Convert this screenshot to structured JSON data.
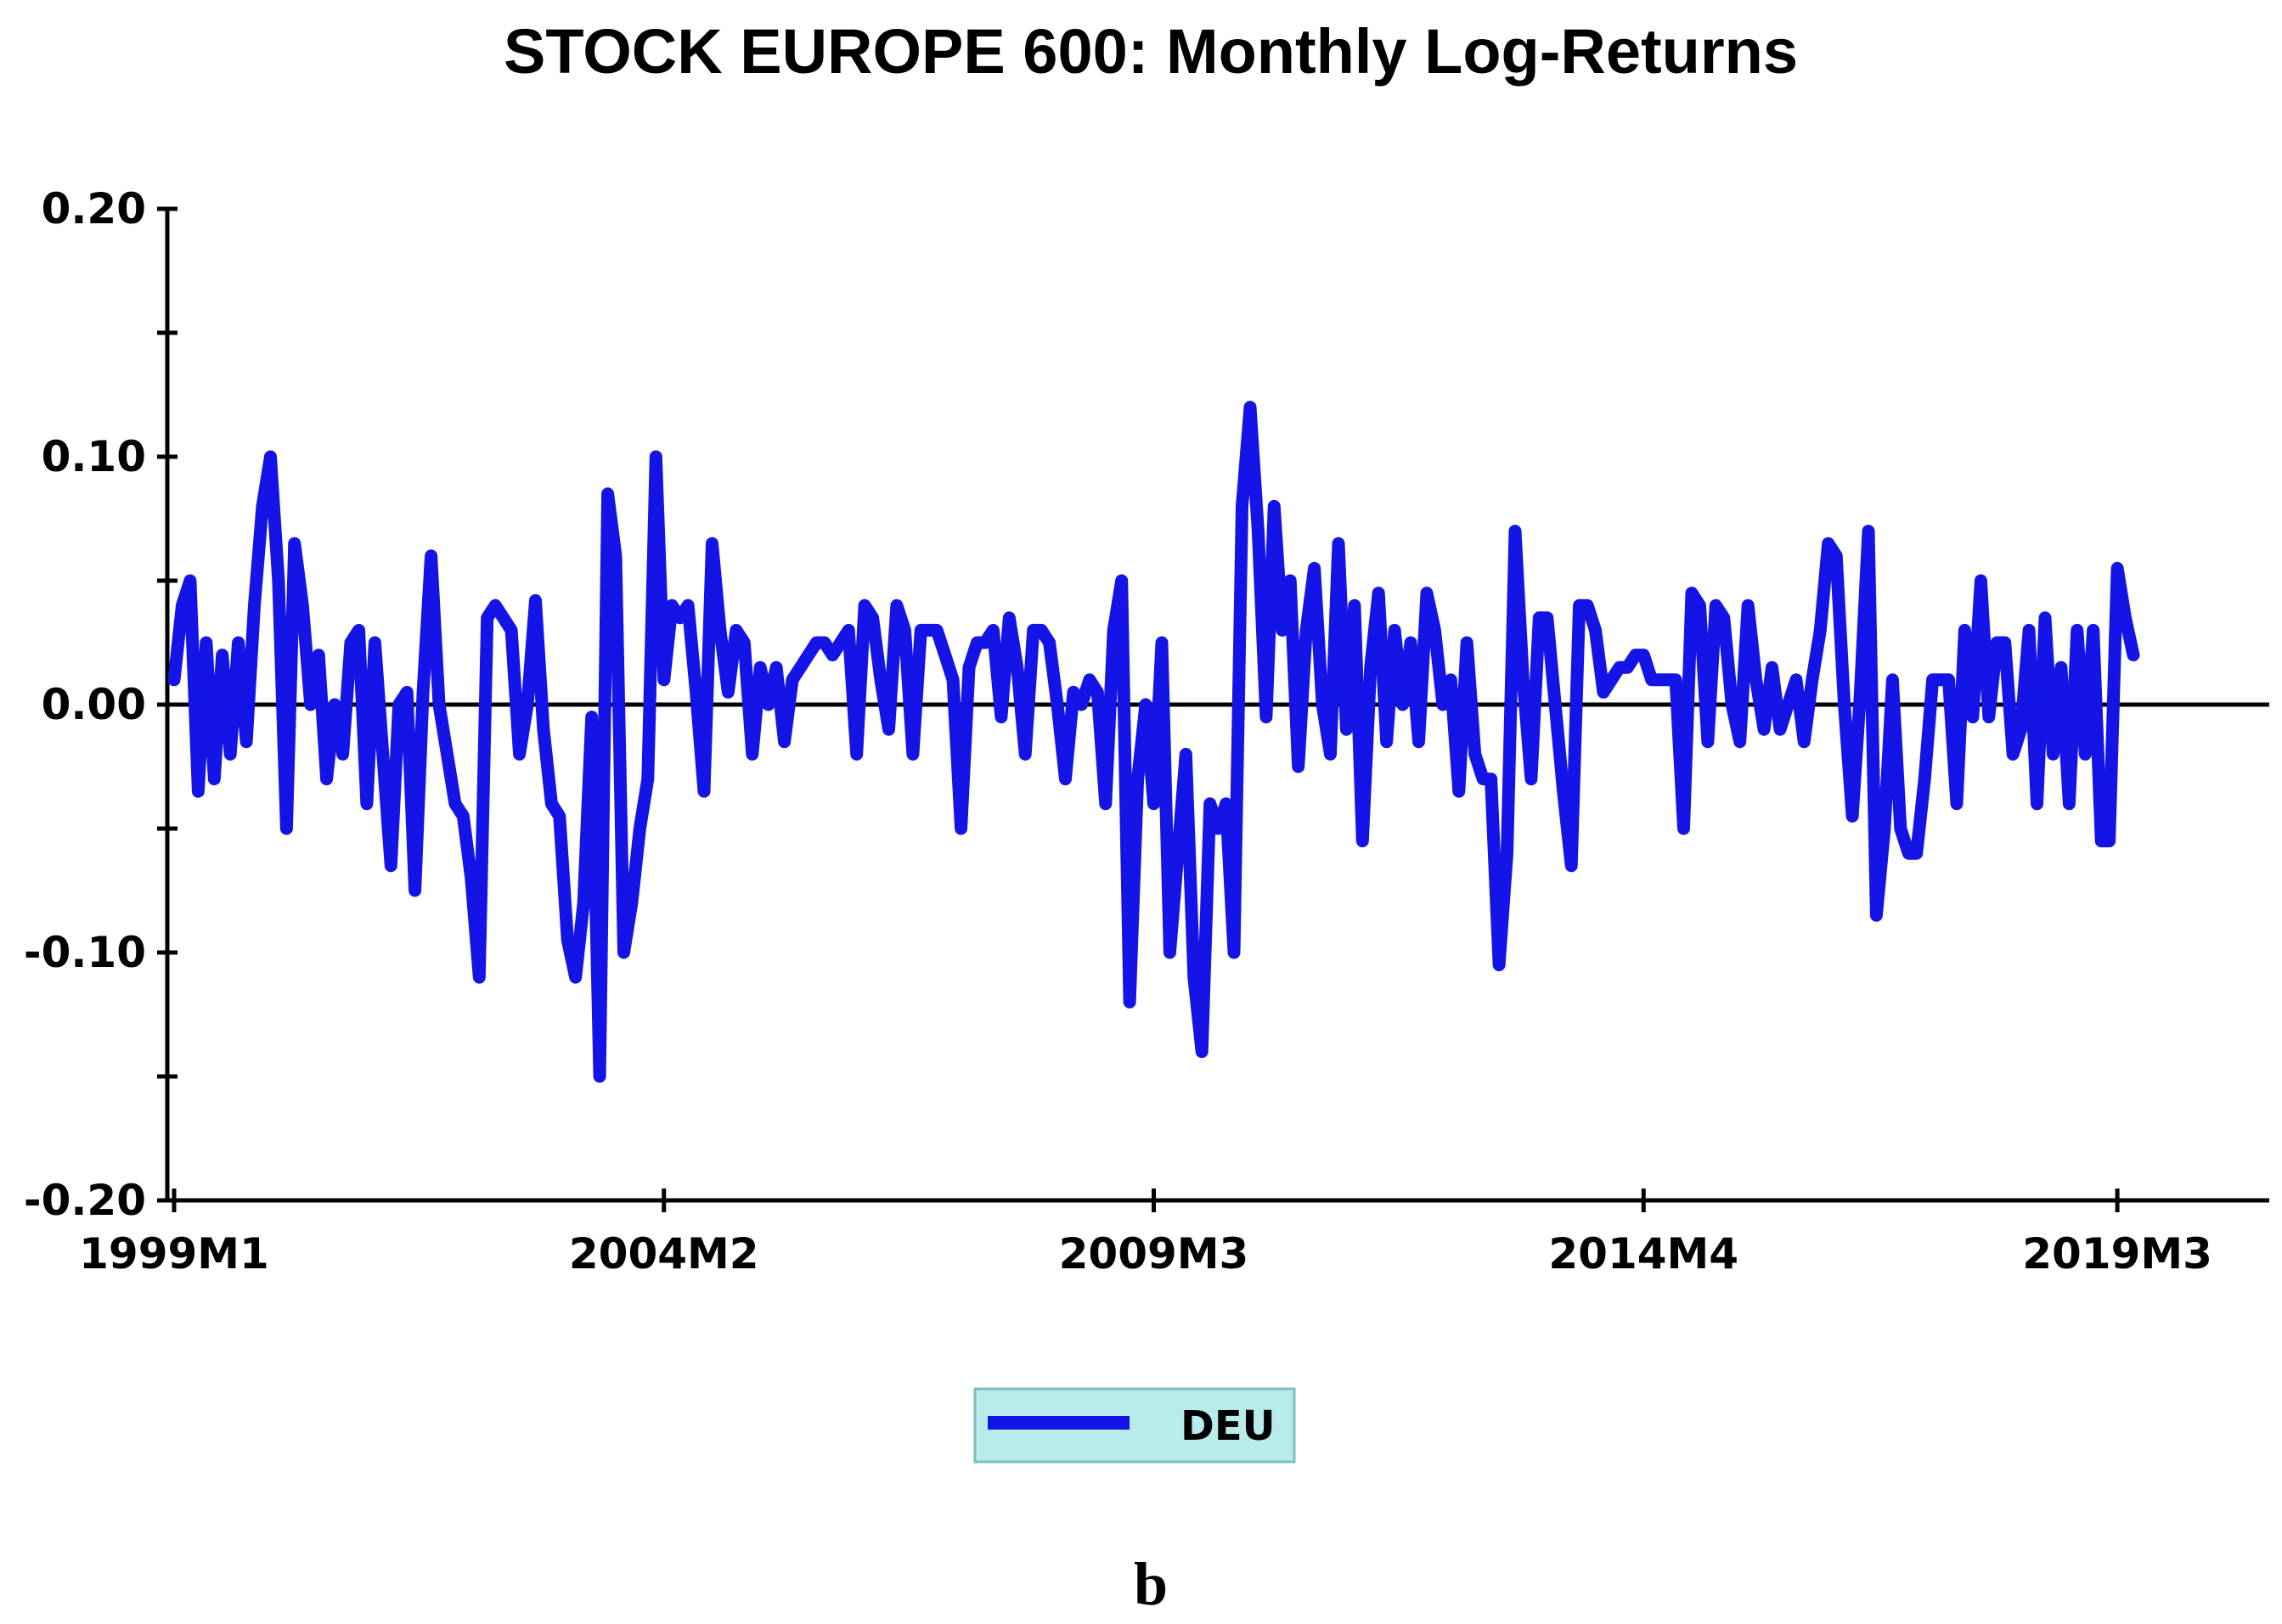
{
  "panel_label": "b",
  "chart_data": {
    "type": "line",
    "title": "STOCK EUROPE 600: Monthly Log-Returns",
    "xlabel": "",
    "ylabel": "",
    "ylim": [
      -0.2,
      0.2
    ],
    "y_ticks": [
      "0.20",
      "0.10",
      "0.00",
      "-0.10",
      "-0.20"
    ],
    "x_tick_labels": [
      "1999M1",
      "2004M2",
      "2009M3",
      "2014M4",
      "2019M3"
    ],
    "x_ticks_at_index": [
      0,
      61,
      122,
      183,
      242
    ],
    "zero_line": true,
    "grid": false,
    "legend": {
      "placement": "bottom-center",
      "background": "#b8ecec"
    },
    "colors": {
      "series": "#1414e6",
      "axis": "#000000"
    },
    "series": [
      {
        "name": "DEU",
        "start": "1999M1",
        "values": [
          0.01,
          0.04,
          0.05,
          -0.035,
          0.025,
          -0.03,
          0.02,
          -0.02,
          0.025,
          -0.015,
          0.04,
          0.08,
          0.1,
          0.05,
          -0.05,
          0.065,
          0.04,
          0.0,
          0.02,
          -0.03,
          0.0,
          -0.02,
          0.025,
          0.03,
          -0.04,
          0.025,
          -0.02,
          -0.065,
          0.0,
          0.005,
          -0.075,
          0.005,
          0.06,
          0.0,
          -0.02,
          -0.04,
          -0.045,
          -0.07,
          -0.11,
          0.035,
          0.04,
          0.035,
          0.03,
          -0.02,
          0.0,
          0.042,
          -0.01,
          -0.04,
          -0.045,
          -0.095,
          -0.11,
          -0.08,
          -0.005,
          -0.15,
          0.085,
          0.06,
          -0.1,
          -0.08,
          -0.05,
          -0.03,
          0.1,
          0.01,
          0.04,
          0.035,
          0.04,
          0.005,
          -0.035,
          0.065,
          0.03,
          0.005,
          0.03,
          0.025,
          -0.02,
          0.015,
          0.0,
          0.015,
          -0.015,
          0.01,
          0.015,
          0.02,
          0.025,
          0.025,
          0.02,
          0.025,
          0.03,
          -0.02,
          0.04,
          0.035,
          0.01,
          -0.01,
          0.04,
          0.03,
          -0.02,
          0.03,
          0.03,
          0.03,
          0.02,
          0.01,
          -0.05,
          0.015,
          0.025,
          0.025,
          0.03,
          -0.005,
          0.035,
          0.015,
          -0.02,
          0.03,
          0.03,
          0.025,
          0.0,
          -0.03,
          0.005,
          0.0,
          0.01,
          0.005,
          -0.04,
          0.03,
          0.05,
          -0.12,
          -0.03,
          0.0,
          -0.04,
          0.025,
          -0.1,
          -0.06,
          -0.02,
          -0.11,
          -0.14,
          -0.04,
          -0.05,
          -0.04,
          -0.1,
          0.08,
          0.12,
          0.07,
          -0.005,
          0.08,
          0.03,
          0.05,
          -0.025,
          0.03,
          0.055,
          0.0,
          -0.02,
          0.065,
          -0.01,
          0.04,
          -0.055,
          0.015,
          0.045,
          -0.015,
          0.03,
          0.0,
          0.025,
          -0.015,
          0.045,
          0.03,
          0.0,
          0.01,
          -0.035,
          0.025,
          -0.02,
          -0.03,
          -0.03,
          -0.105,
          -0.06,
          0.07,
          0.01,
          -0.03,
          0.035,
          0.035,
          0.0,
          -0.035,
          -0.065,
          0.04,
          0.04,
          0.03,
          0.005,
          0.01,
          0.015,
          0.015,
          0.02,
          0.02,
          0.01,
          0.01,
          0.01,
          0.01,
          -0.05,
          0.045,
          0.04,
          -0.015,
          0.04,
          0.035,
          0.0,
          -0.015,
          0.04,
          0.01,
          -0.01,
          0.015,
          -0.01,
          0.0,
          0.01,
          -0.015,
          0.01,
          0.03,
          0.065,
          0.06,
          0.0,
          -0.045,
          0.005,
          0.07,
          -0.085,
          -0.05,
          0.01,
          -0.05,
          -0.06,
          -0.06,
          -0.03,
          0.01,
          0.01,
          0.01,
          -0.04,
          0.03,
          -0.005,
          0.05,
          -0.005,
          0.025,
          0.025,
          -0.02,
          -0.01,
          0.03,
          -0.04,
          0.035,
          -0.02,
          0.015,
          -0.04,
          0.03,
          -0.02,
          0.03,
          -0.055,
          -0.055,
          0.055,
          0.035,
          0.02
        ]
      }
    ]
  }
}
